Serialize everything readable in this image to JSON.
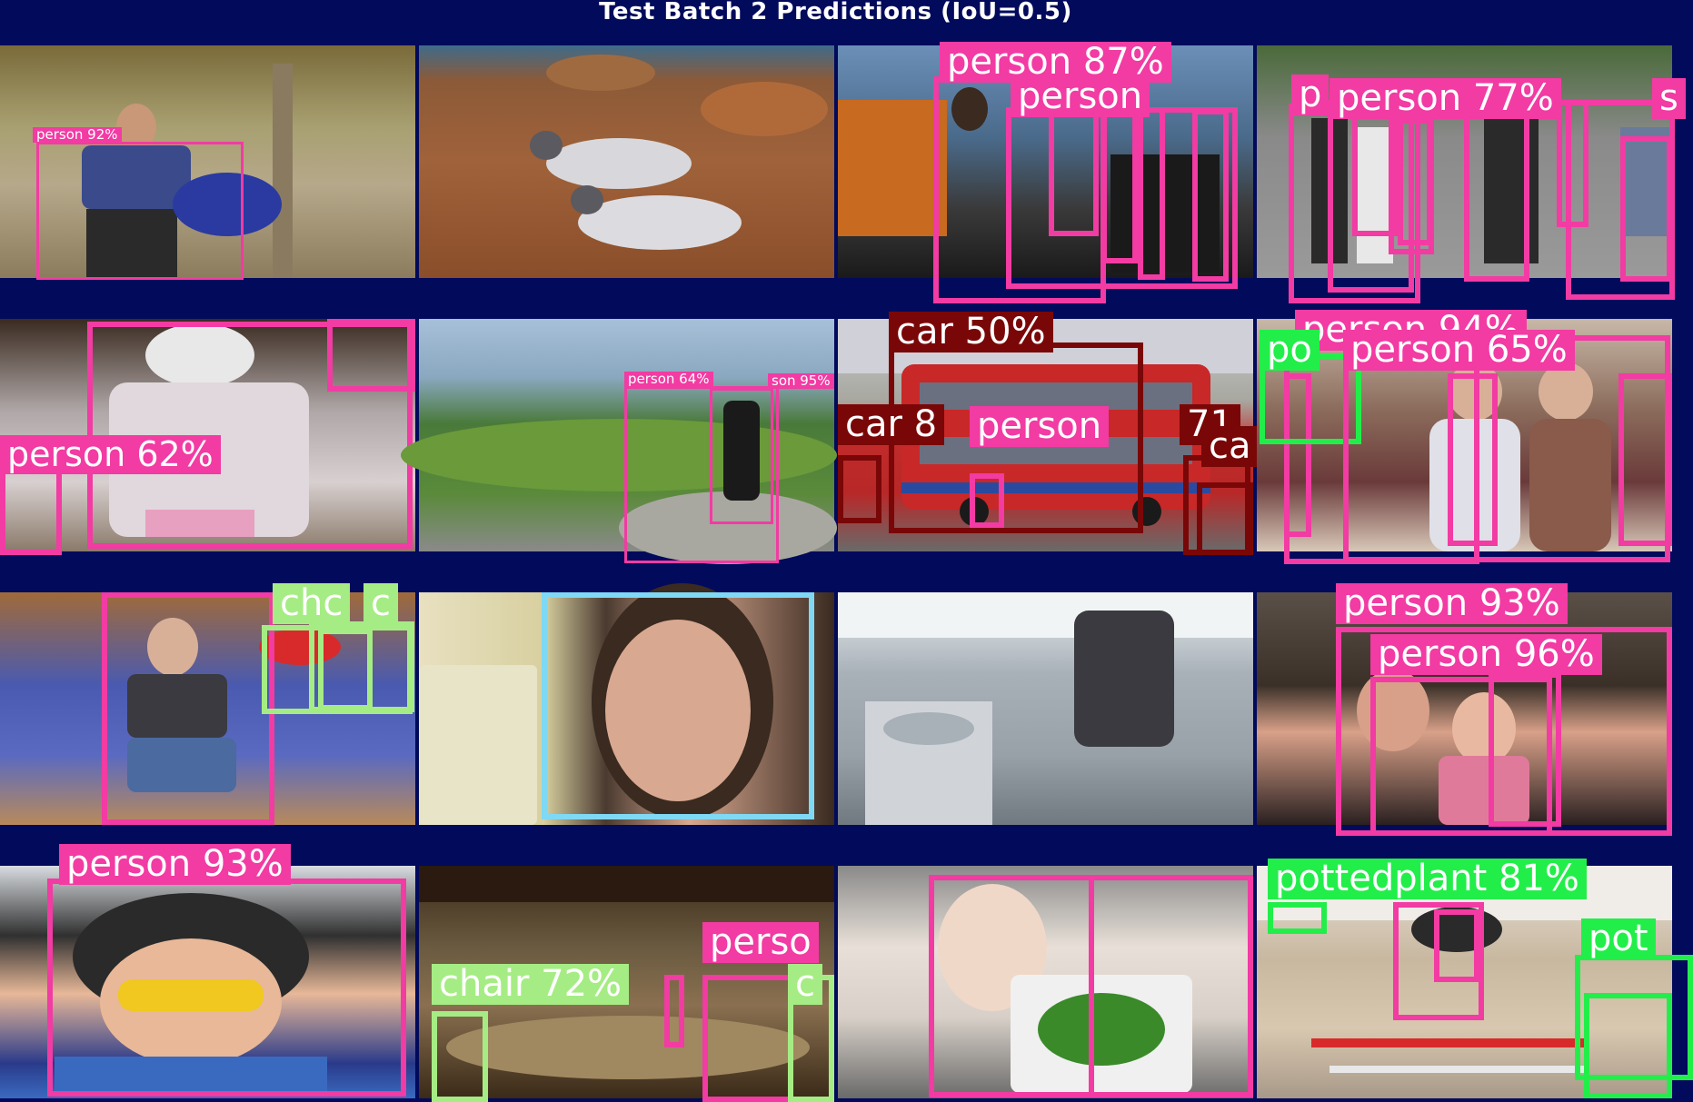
{
  "title": "Test Batch 2 Predictions (IoU=0.5)",
  "colors": {
    "background": "#020a5c",
    "person": "#f23ba3",
    "pottedplant": "#22ee4a",
    "chair": "#a6ec84",
    "car": "#7a0707",
    "tvmonitor": "#7fd8f4"
  },
  "tiles": [
    {
      "scene": "hiker-with-backpack",
      "detections": [
        {
          "label": "person 92%",
          "cls": "person"
        }
      ]
    },
    {
      "scene": "two-gulls-on-rocks",
      "detections": []
    },
    {
      "scene": "people-in-boat",
      "detections": [
        {
          "label": "person 87%",
          "cls": "person"
        },
        {
          "label": "person",
          "cls": "person"
        }
      ]
    },
    {
      "scene": "group-on-street",
      "detections": [
        {
          "label": "p",
          "cls": "person"
        },
        {
          "label": "person 77%",
          "cls": "person"
        },
        {
          "label": "s",
          "cls": "person"
        }
      ]
    },
    {
      "scene": "blindfolded-girl",
      "detections": [
        {
          "label": "person 62%",
          "cls": "person"
        }
      ]
    },
    {
      "scene": "hiker-on-hill",
      "detections": [
        {
          "label": "person 64%",
          "cls": "person"
        },
        {
          "label": "son 95%",
          "cls": "person"
        }
      ]
    },
    {
      "scene": "red-double-decker-bus",
      "detections": [
        {
          "label": "car 50%",
          "cls": "car"
        },
        {
          "label": "car 8",
          "cls": "car"
        },
        {
          "label": "person",
          "cls": "person"
        },
        {
          "label": "71",
          "cls": "car"
        },
        {
          "label": "ca",
          "cls": "car"
        }
      ]
    },
    {
      "scene": "two-women-on-sofa",
      "detections": [
        {
          "label": "person 94%",
          "cls": "person"
        },
        {
          "label": "po",
          "cls": "pottedplant"
        },
        {
          "label": "person 65%",
          "cls": "person"
        }
      ]
    },
    {
      "scene": "girl-on-blue-couch",
      "detections": [
        {
          "label": "chc",
          "cls": "chair"
        },
        {
          "label": "c",
          "cls": "chair"
        }
      ]
    },
    {
      "scene": "girl-reading-book",
      "detections": []
    },
    {
      "scene": "ship-bridge-chair",
      "detections": []
    },
    {
      "scene": "mother-and-child",
      "detections": [
        {
          "label": "person 93%",
          "cls": "person"
        },
        {
          "label": "person 96%",
          "cls": "person"
        }
      ]
    },
    {
      "scene": "boy-with-goggles",
      "detections": [
        {
          "label": "person 93%",
          "cls": "person"
        }
      ]
    },
    {
      "scene": "empty-hall",
      "detections": [
        {
          "label": "chair 72%",
          "cls": "chair"
        },
        {
          "label": "perso",
          "cls": "person"
        },
        {
          "label": "c",
          "cls": "chair"
        }
      ]
    },
    {
      "scene": "baby-with-book",
      "detections": []
    },
    {
      "scene": "horse-show-jumping",
      "detections": [
        {
          "label": "pottedplant 81%",
          "cls": "pottedplant"
        },
        {
          "label": "pot",
          "cls": "pottedplant"
        }
      ]
    }
  ]
}
